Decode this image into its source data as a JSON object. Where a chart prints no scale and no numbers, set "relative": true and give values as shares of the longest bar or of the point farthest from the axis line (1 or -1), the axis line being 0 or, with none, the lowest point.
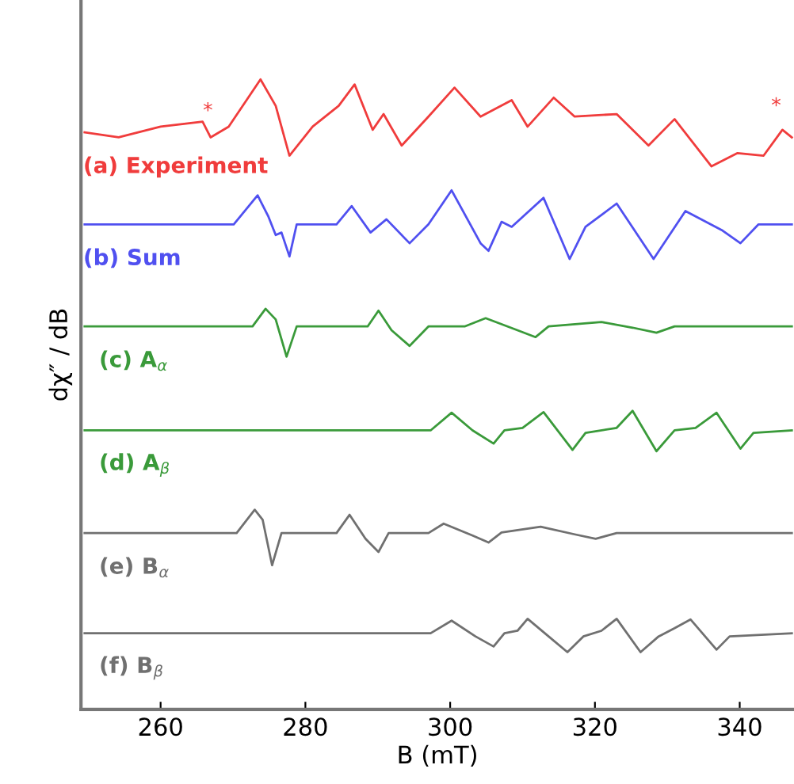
{
  "chart_data": {
    "type": "line",
    "relative": true,
    "xlabel": "B (mT)",
    "ylabel": "dχ″ / dB",
    "xlim": [
      249,
      347.5
    ],
    "xticks": [
      260,
      280,
      300,
      320,
      340
    ],
    "grid": false,
    "legend": false,
    "marker": "none",
    "line_style": "solid",
    "tick_labels": "x",
    "annotations": [
      "*",
      "*"
    ],
    "series": [
      {
        "name": "(a) Experiment",
        "color": "#f03c3c",
        "x": [
          249.5,
          254.2,
          260.0,
          265.8,
          266.9,
          269.4,
          273.8,
          275.9,
          277.8,
          281.0,
          284.6,
          286.8,
          289.3,
          290.8,
          293.3,
          297.0,
          300.6,
          304.2,
          308.5,
          310.7,
          314.3,
          317.2,
          323.0,
          327.4,
          331.0,
          336.1,
          339.7,
          343.3,
          345.9,
          347.2
        ],
        "values": [
          0.916,
          0.908,
          0.925,
          0.933,
          0.908,
          0.925,
          1.0,
          0.958,
          0.879,
          0.925,
          0.958,
          0.992,
          0.92,
          0.945,
          0.895,
          0.941,
          0.987,
          0.941,
          0.967,
          0.925,
          0.971,
          0.941,
          0.945,
          0.895,
          0.937,
          0.862,
          0.883,
          0.879,
          0.92,
          0.908
        ]
      },
      {
        "name": "(b) Sum",
        "color": "#5050f0",
        "x": [
          249.5,
          270.1,
          273.4,
          274.9,
          275.9,
          276.7,
          277.8,
          278.8,
          284.3,
          286.4,
          289.0,
          291.2,
          294.4,
          297.0,
          300.2,
          304.2,
          305.3,
          307.1,
          308.5,
          312.9,
          316.5,
          318.7,
          323.0,
          328.1,
          332.5,
          337.5,
          340.1,
          342.6,
          347.2
        ],
        "values": [
          0.77,
          0.77,
          0.816,
          0.782,
          0.753,
          0.757,
          0.719,
          0.77,
          0.77,
          0.799,
          0.757,
          0.778,
          0.74,
          0.77,
          0.824,
          0.74,
          0.728,
          0.774,
          0.766,
          0.812,
          0.715,
          0.766,
          0.803,
          0.715,
          0.791,
          0.761,
          0.74,
          0.77,
          0.77
        ]
      },
      {
        "name": "(c) A$_{α}$",
        "color": "#3a9a3a",
        "x": [
          249.5,
          272.7,
          274.5,
          275.9,
          277.4,
          278.8,
          288.6,
          290.1,
          291.9,
          294.4,
          297.0,
          302.0,
          304.9,
          309.3,
          311.8,
          313.6,
          320.9,
          325.2,
          328.5,
          331.0,
          347.2
        ],
        "values": [
          0.608,
          0.608,
          0.636,
          0.619,
          0.56,
          0.608,
          0.608,
          0.633,
          0.602,
          0.577,
          0.608,
          0.608,
          0.621,
          0.602,
          0.591,
          0.608,
          0.615,
          0.606,
          0.598,
          0.608,
          0.608
        ]
      },
      {
        "name": "(d) A$_{β}$",
        "color": "#3a9a3a",
        "x": [
          249.5,
          297.3,
          300.2,
          303.1,
          306.0,
          307.5,
          310.0,
          312.9,
          316.9,
          318.7,
          323.0,
          325.2,
          328.5,
          331.0,
          333.9,
          336.8,
          340.1,
          341.9,
          347.2
        ],
        "values": [
          0.443,
          0.443,
          0.471,
          0.443,
          0.422,
          0.443,
          0.447,
          0.472,
          0.412,
          0.439,
          0.447,
          0.474,
          0.41,
          0.443,
          0.447,
          0.471,
          0.414,
          0.439,
          0.443
        ]
      },
      {
        "name": "(e) B$_{α}$",
        "color": "#707070",
        "x": [
          249.5,
          270.5,
          273.0,
          274.1,
          275.4,
          276.7,
          284.3,
          286.1,
          288.3,
          290.1,
          291.5,
          297.0,
          299.1,
          303.1,
          305.3,
          307.1,
          312.5,
          317.2,
          320.1,
          323.0,
          347.2
        ],
        "values": [
          0.28,
          0.28,
          0.317,
          0.301,
          0.229,
          0.28,
          0.28,
          0.309,
          0.271,
          0.25,
          0.28,
          0.28,
          0.295,
          0.276,
          0.265,
          0.281,
          0.29,
          0.278,
          0.271,
          0.28,
          0.28
        ]
      },
      {
        "name": "(f) B$_{β}$",
        "color": "#707070",
        "x": [
          249.5,
          297.3,
          300.2,
          303.5,
          306.0,
          307.5,
          309.3,
          310.7,
          313.6,
          316.2,
          318.4,
          320.9,
          323.0,
          326.3,
          328.8,
          331.0,
          333.2,
          336.8,
          338.6,
          347.2
        ],
        "values": [
          0.121,
          0.121,
          0.141,
          0.116,
          0.1,
          0.121,
          0.125,
          0.144,
          0.116,
          0.091,
          0.116,
          0.125,
          0.144,
          0.091,
          0.116,
          0.129,
          0.143,
          0.095,
          0.116,
          0.121
        ]
      }
    ]
  }
}
